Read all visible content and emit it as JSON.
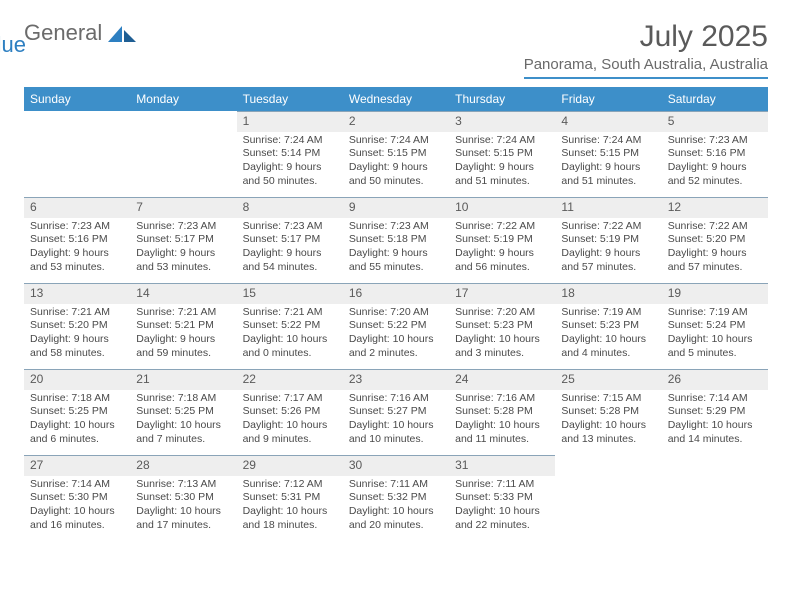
{
  "brand": {
    "part1": "General",
    "part2": "Blue"
  },
  "title": "July 2025",
  "location": "Panorama, South Australia, Australia",
  "colors": {
    "header_bg": "#3d8fc9",
    "header_text": "#ffffff",
    "daynum_bg": "#eeeeee",
    "rule": "#8aa4b8",
    "text": "#4a4a4a",
    "title_text": "#5a5a5a",
    "brand_gray": "#6b6b6b",
    "brand_blue": "#2d7fc1"
  },
  "weekdays": [
    "Sunday",
    "Monday",
    "Tuesday",
    "Wednesday",
    "Thursday",
    "Friday",
    "Saturday"
  ],
  "grid": [
    [
      null,
      null,
      {
        "n": "1",
        "sr": "7:24 AM",
        "ss": "5:14 PM",
        "dl": "9 hours and 50 minutes."
      },
      {
        "n": "2",
        "sr": "7:24 AM",
        "ss": "5:15 PM",
        "dl": "9 hours and 50 minutes."
      },
      {
        "n": "3",
        "sr": "7:24 AM",
        "ss": "5:15 PM",
        "dl": "9 hours and 51 minutes."
      },
      {
        "n": "4",
        "sr": "7:24 AM",
        "ss": "5:15 PM",
        "dl": "9 hours and 51 minutes."
      },
      {
        "n": "5",
        "sr": "7:23 AM",
        "ss": "5:16 PM",
        "dl": "9 hours and 52 minutes."
      }
    ],
    [
      {
        "n": "6",
        "sr": "7:23 AM",
        "ss": "5:16 PM",
        "dl": "9 hours and 53 minutes."
      },
      {
        "n": "7",
        "sr": "7:23 AM",
        "ss": "5:17 PM",
        "dl": "9 hours and 53 minutes."
      },
      {
        "n": "8",
        "sr": "7:23 AM",
        "ss": "5:17 PM",
        "dl": "9 hours and 54 minutes."
      },
      {
        "n": "9",
        "sr": "7:23 AM",
        "ss": "5:18 PM",
        "dl": "9 hours and 55 minutes."
      },
      {
        "n": "10",
        "sr": "7:22 AM",
        "ss": "5:19 PM",
        "dl": "9 hours and 56 minutes."
      },
      {
        "n": "11",
        "sr": "7:22 AM",
        "ss": "5:19 PM",
        "dl": "9 hours and 57 minutes."
      },
      {
        "n": "12",
        "sr": "7:22 AM",
        "ss": "5:20 PM",
        "dl": "9 hours and 57 minutes."
      }
    ],
    [
      {
        "n": "13",
        "sr": "7:21 AM",
        "ss": "5:20 PM",
        "dl": "9 hours and 58 minutes."
      },
      {
        "n": "14",
        "sr": "7:21 AM",
        "ss": "5:21 PM",
        "dl": "9 hours and 59 minutes."
      },
      {
        "n": "15",
        "sr": "7:21 AM",
        "ss": "5:22 PM",
        "dl": "10 hours and 0 minutes."
      },
      {
        "n": "16",
        "sr": "7:20 AM",
        "ss": "5:22 PM",
        "dl": "10 hours and 2 minutes."
      },
      {
        "n": "17",
        "sr": "7:20 AM",
        "ss": "5:23 PM",
        "dl": "10 hours and 3 minutes."
      },
      {
        "n": "18",
        "sr": "7:19 AM",
        "ss": "5:23 PM",
        "dl": "10 hours and 4 minutes."
      },
      {
        "n": "19",
        "sr": "7:19 AM",
        "ss": "5:24 PM",
        "dl": "10 hours and 5 minutes."
      }
    ],
    [
      {
        "n": "20",
        "sr": "7:18 AM",
        "ss": "5:25 PM",
        "dl": "10 hours and 6 minutes."
      },
      {
        "n": "21",
        "sr": "7:18 AM",
        "ss": "5:25 PM",
        "dl": "10 hours and 7 minutes."
      },
      {
        "n": "22",
        "sr": "7:17 AM",
        "ss": "5:26 PM",
        "dl": "10 hours and 9 minutes."
      },
      {
        "n": "23",
        "sr": "7:16 AM",
        "ss": "5:27 PM",
        "dl": "10 hours and 10 minutes."
      },
      {
        "n": "24",
        "sr": "7:16 AM",
        "ss": "5:28 PM",
        "dl": "10 hours and 11 minutes."
      },
      {
        "n": "25",
        "sr": "7:15 AM",
        "ss": "5:28 PM",
        "dl": "10 hours and 13 minutes."
      },
      {
        "n": "26",
        "sr": "7:14 AM",
        "ss": "5:29 PM",
        "dl": "10 hours and 14 minutes."
      }
    ],
    [
      {
        "n": "27",
        "sr": "7:14 AM",
        "ss": "5:30 PM",
        "dl": "10 hours and 16 minutes."
      },
      {
        "n": "28",
        "sr": "7:13 AM",
        "ss": "5:30 PM",
        "dl": "10 hours and 17 minutes."
      },
      {
        "n": "29",
        "sr": "7:12 AM",
        "ss": "5:31 PM",
        "dl": "10 hours and 18 minutes."
      },
      {
        "n": "30",
        "sr": "7:11 AM",
        "ss": "5:32 PM",
        "dl": "10 hours and 20 minutes."
      },
      {
        "n": "31",
        "sr": "7:11 AM",
        "ss": "5:33 PM",
        "dl": "10 hours and 22 minutes."
      },
      null,
      null
    ]
  ],
  "labels": {
    "sunrise": "Sunrise:",
    "sunset": "Sunset:",
    "daylight": "Daylight:"
  }
}
